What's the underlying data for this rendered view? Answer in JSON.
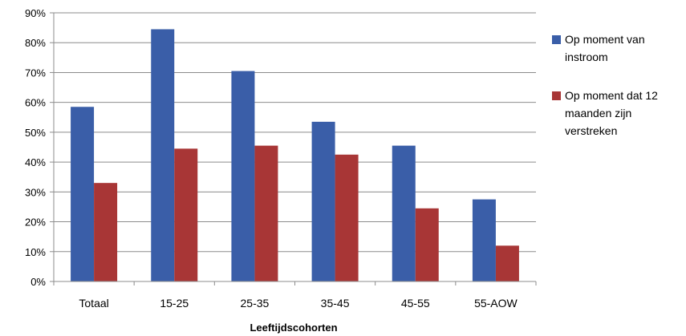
{
  "chart_data": {
    "type": "bar",
    "title": "",
    "xlabel": "Leeftijdscohorten",
    "ylabel": "",
    "ylim": [
      0,
      90
    ],
    "yticks": [
      "0%",
      "10%",
      "20%",
      "30%",
      "40%",
      "50%",
      "60%",
      "70%",
      "80%",
      "90%"
    ],
    "categories": [
      "Totaal",
      "15-25",
      "25-35",
      "35-45",
      "45-55",
      "55-AOW"
    ],
    "grid": true,
    "legend_position": "right",
    "series": [
      {
        "name": "Op moment van instroom",
        "color": "#3a5ea8",
        "values": [
          58.5,
          84.5,
          70.5,
          53.5,
          45.5,
          27.5
        ]
      },
      {
        "name": "Op moment dat 12 maanden zijn verstreken",
        "color": "#a83636",
        "values": [
          33,
          44.5,
          45.5,
          42.5,
          24.5,
          12
        ]
      }
    ]
  }
}
